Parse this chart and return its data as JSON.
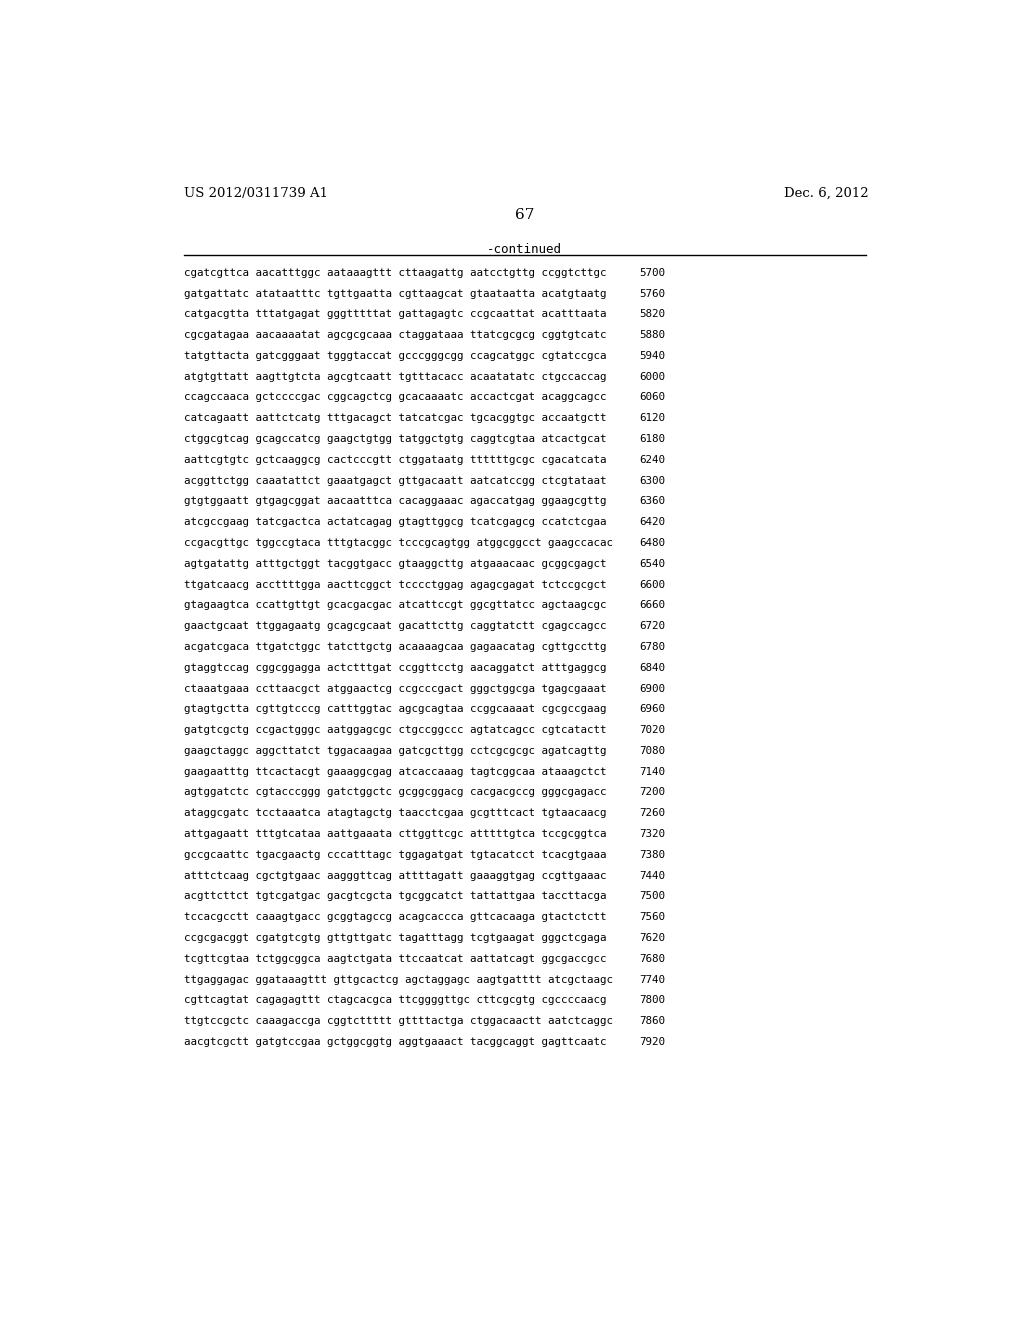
{
  "header_left": "US 2012/0311739 A1",
  "header_right": "Dec. 6, 2012",
  "page_number": "67",
  "continued_label": "-continued",
  "background_color": "#ffffff",
  "text_color": "#000000",
  "sequence_lines": [
    [
      "cgatcgttca aacatttggc aataaagttt cttaagattg aatcctgttg ccggtcttgc",
      "5700"
    ],
    [
      "gatgattatc atataatttc tgttgaatta cgttaagcat gtaataatta acatgtaatg",
      "5760"
    ],
    [
      "catgacgtta tttatgagat gggtttttat gattagagtc ccgcaattat acatttaata",
      "5820"
    ],
    [
      "cgcgatagaa aacaaaatat agcgcgcaaa ctaggataaa ttatcgcgcg cggtgtcatc",
      "5880"
    ],
    [
      "tatgttacta gatcgggaat tgggtaccat gcccgggcgg ccagcatggc cgtatccgca",
      "5940"
    ],
    [
      "atgtgttatt aagttgtcta agcgtcaatt tgtttacacc acaatatatc ctgccaccag",
      "6000"
    ],
    [
      "ccagccaaca gctccccgac cggcagctcg gcacaaaatc accactcgat acaggcagcc",
      "6060"
    ],
    [
      "catcagaatt aattctcatg tttgacagct tatcatcgac tgcacggtgc accaatgctt",
      "6120"
    ],
    [
      "ctggcgtcag gcagccatcg gaagctgtgg tatggctgtg caggtcgtaa atcactgcat",
      "6180"
    ],
    [
      "aattcgtgtc gctcaaggcg cactcccgtt ctggataatg ttttttgcgc cgacatcata",
      "6240"
    ],
    [
      "acggttctgg caaatattct gaaatgagct gttgacaatt aatcatccgg ctcgtataat",
      "6300"
    ],
    [
      "gtgtggaatt gtgagcggat aacaatttca cacaggaaac agaccatgag ggaagcgttg",
      "6360"
    ],
    [
      "atcgccgaag tatcgactca actatcagag gtagttggcg tcatcgagcg ccatctcgaa",
      "6420"
    ],
    [
      "ccgacgttgc tggccgtaca tttgtacggc tcccgcagtgg atggcggcct gaagccacac",
      "6480"
    ],
    [
      "agtgatattg atttgctggt tacggtgacc gtaaggcttg atgaaacaac gcggcgagct",
      "6540"
    ],
    [
      "ttgatcaacg accttttgga aacttcggct tcccctggag agagcgagat tctccgcgct",
      "6600"
    ],
    [
      "gtagaagtca ccattgttgt gcacgacgac atcattccgt ggcgttatcc agctaagcgc",
      "6660"
    ],
    [
      "gaactgcaat ttggagaatg gcagcgcaat gacattcttg caggtatctt cgagccagcc",
      "6720"
    ],
    [
      "acgatcgaca ttgatctggc tatcttgctg acaaaagcaa gagaacatag cgttgccttg",
      "6780"
    ],
    [
      "gtaggtccag cggcggagga actctttgat ccggttcctg aacaggatct atttgaggcg",
      "6840"
    ],
    [
      "ctaaatgaaa ccttaacgct atggaactcg ccgcccgact gggctggcga tgagcgaaat",
      "6900"
    ],
    [
      "gtagtgctta cgttgtcccg catttggtac agcgcagtaa ccggcaaaat cgcgccgaag",
      "6960"
    ],
    [
      "gatgtcgctg ccgactgggc aatggagcgc ctgccggccc agtatcagcc cgtcatactt",
      "7020"
    ],
    [
      "gaagctaggc aggcttatct tggacaagaa gatcgcttgg cctcgcgcgc agatcagttg",
      "7080"
    ],
    [
      "gaagaatttg ttcactacgt gaaaggcgag atcaccaaag tagtcggcaa ataaagctct",
      "7140"
    ],
    [
      "agtggatctc cgtacccggg gatctggctc gcggcggacg cacgacgccg gggcgagacc",
      "7200"
    ],
    [
      "ataggcgatc tcctaaatca atagtagctg taacctcgaa gcgtttcact tgtaacaacg",
      "7260"
    ],
    [
      "attgagaatt tttgtcataa aattgaaata cttggttcgc atttttgtca tccgcggtca",
      "7320"
    ],
    [
      "gccgcaattc tgacgaactg cccatttagc tggagatgat tgtacatcct tcacgtgaaa",
      "7380"
    ],
    [
      "atttctcaag cgctgtgaac aagggttcag attttagatt gaaaggtgag ccgttgaaac",
      "7440"
    ],
    [
      "acgttcttct tgtcgatgac gacgtcgcta tgcggcatct tattattgaa taccttacga",
      "7500"
    ],
    [
      "tccacgcctt caaagtgacc gcggtagccg acagcaccca gttcacaaga gtactctctt",
      "7560"
    ],
    [
      "ccgcgacggt cgatgtcgtg gttgttgatc tagatttagg tcgtgaagat gggctcgaga",
      "7620"
    ],
    [
      "tcgttcgtaa tctggcggca aagtctgata ttccaatcat aattatcagt ggcgaccgcc",
      "7680"
    ],
    [
      "ttgaggagac ggataaagttt gttgcactcg agctaggagc aagtgatttt atcgctaagc",
      "7740"
    ],
    [
      "cgttcagtat cagagagttt ctagcacgca ttcggggttgc cttcgcgtg cgccccaacg",
      "7800"
    ],
    [
      "ttgtccgctc caaagaccga cggtcttttt gttttactga ctggacaactt aatctcaggc",
      "7860"
    ],
    [
      "aacgtcgctt gatgtccgaa gctggcggtg aggtgaaact tacggcaggt gagttcaatc",
      "7920"
    ]
  ]
}
